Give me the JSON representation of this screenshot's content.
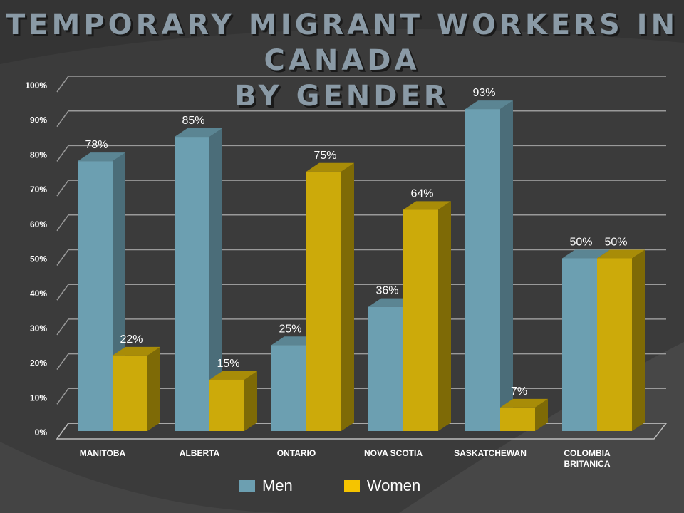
{
  "colors": {
    "men": "#6c9fb1",
    "men_side": "#4b6d79",
    "men_top": "#5b8593",
    "women": "#ccaa0a",
    "women_side": "#7e6a06",
    "women_top": "#a88c08",
    "grid": "#9a9a9a",
    "text": "#ffffff"
  },
  "chart_data": {
    "type": "bar",
    "title_lines": [
      "TEMPORARY MIGRANT WORKERS IN CANADA",
      "BY GENDER"
    ],
    "categories": [
      [
        "MANITOBA"
      ],
      [
        "ALBERTA"
      ],
      [
        "ONTARIO"
      ],
      [
        "NOVA SCOTIA"
      ],
      [
        "SASKATCHEWAN"
      ],
      [
        "COLOMBIA",
        "BRITANICA"
      ]
    ],
    "series": [
      {
        "name": "Men",
        "values": [
          78,
          85,
          25,
          36,
          93,
          50
        ]
      },
      {
        "name": "Women",
        "values": [
          22,
          15,
          75,
          64,
          7,
          50
        ]
      }
    ],
    "data_labels": [
      [
        "78%",
        "85%",
        "25%",
        "36%",
        "93%",
        "50%"
      ],
      [
        "22%",
        "15%",
        "75%",
        "64%",
        "7%",
        "50%"
      ]
    ],
    "y_ticks": [
      "0%",
      "10%",
      "20%",
      "30%",
      "40%",
      "50%",
      "60%",
      "70%",
      "80%",
      "90%",
      "100%"
    ],
    "ylim": [
      0,
      100
    ],
    "grid": true,
    "legend_position": "bottom"
  }
}
